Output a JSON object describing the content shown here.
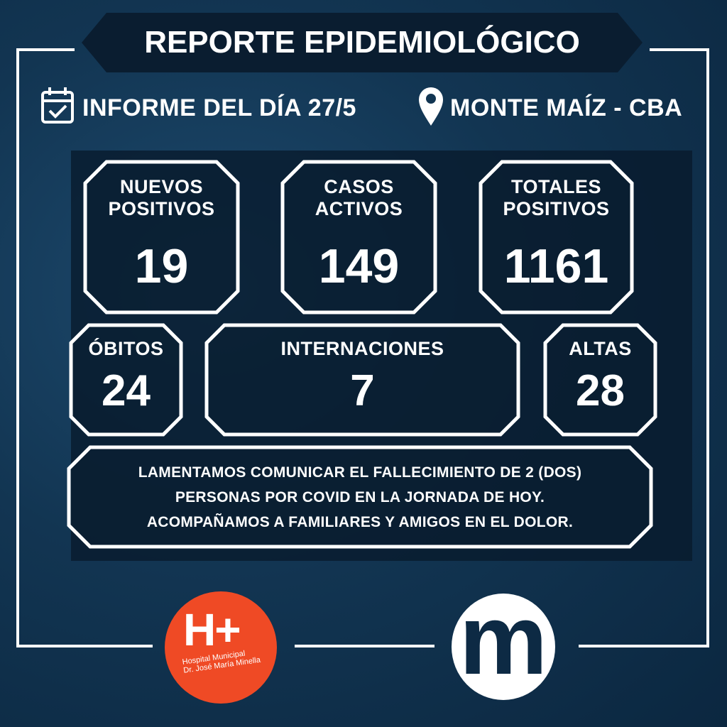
{
  "title": "REPORTE EPIDEMIOLÓGICO",
  "report_date_label": "INFORME DEL DÍA 27/5",
  "location": "MONTE MAÍZ - CBA",
  "icons": [
    "calendar-check-icon",
    "location-pin-icon"
  ],
  "stats": {
    "nuevos_positivos": {
      "label_1": "NUEVOS",
      "label_2": "POSITIVOS",
      "value": "19"
    },
    "casos_activos": {
      "label_1": "CASOS",
      "label_2": "ACTIVOS",
      "value": "149"
    },
    "totales_positivos": {
      "label_1": "TOTALES",
      "label_2": "POSITIVOS",
      "value": "1161"
    },
    "obitos": {
      "label": "ÓBITOS",
      "value": "24"
    },
    "internaciones": {
      "label": "INTERNACIONES",
      "value": "7"
    },
    "altas": {
      "label": "ALTAS",
      "value": "28"
    }
  },
  "message": {
    "line_1": "LAMENTAMOS COMUNICAR EL FALLECIMIENTO DE 2 (DOS)",
    "line_2": "PERSONAS POR COVID EN LA JORNADA DE HOY.",
    "line_3": "ACOMPAÑAMOS A FAMILIARES Y AMIGOS EN EL DOLOR."
  },
  "logos": {
    "hospital": {
      "mark": "H+",
      "line_1": "Hospital Municipal",
      "line_2": "Dr. José María Minella"
    },
    "municipality": {
      "mark": "m"
    }
  },
  "colors": {
    "background": "#123552",
    "hospital_logo": "#ef4a25",
    "panel": "#0a1d30"
  }
}
